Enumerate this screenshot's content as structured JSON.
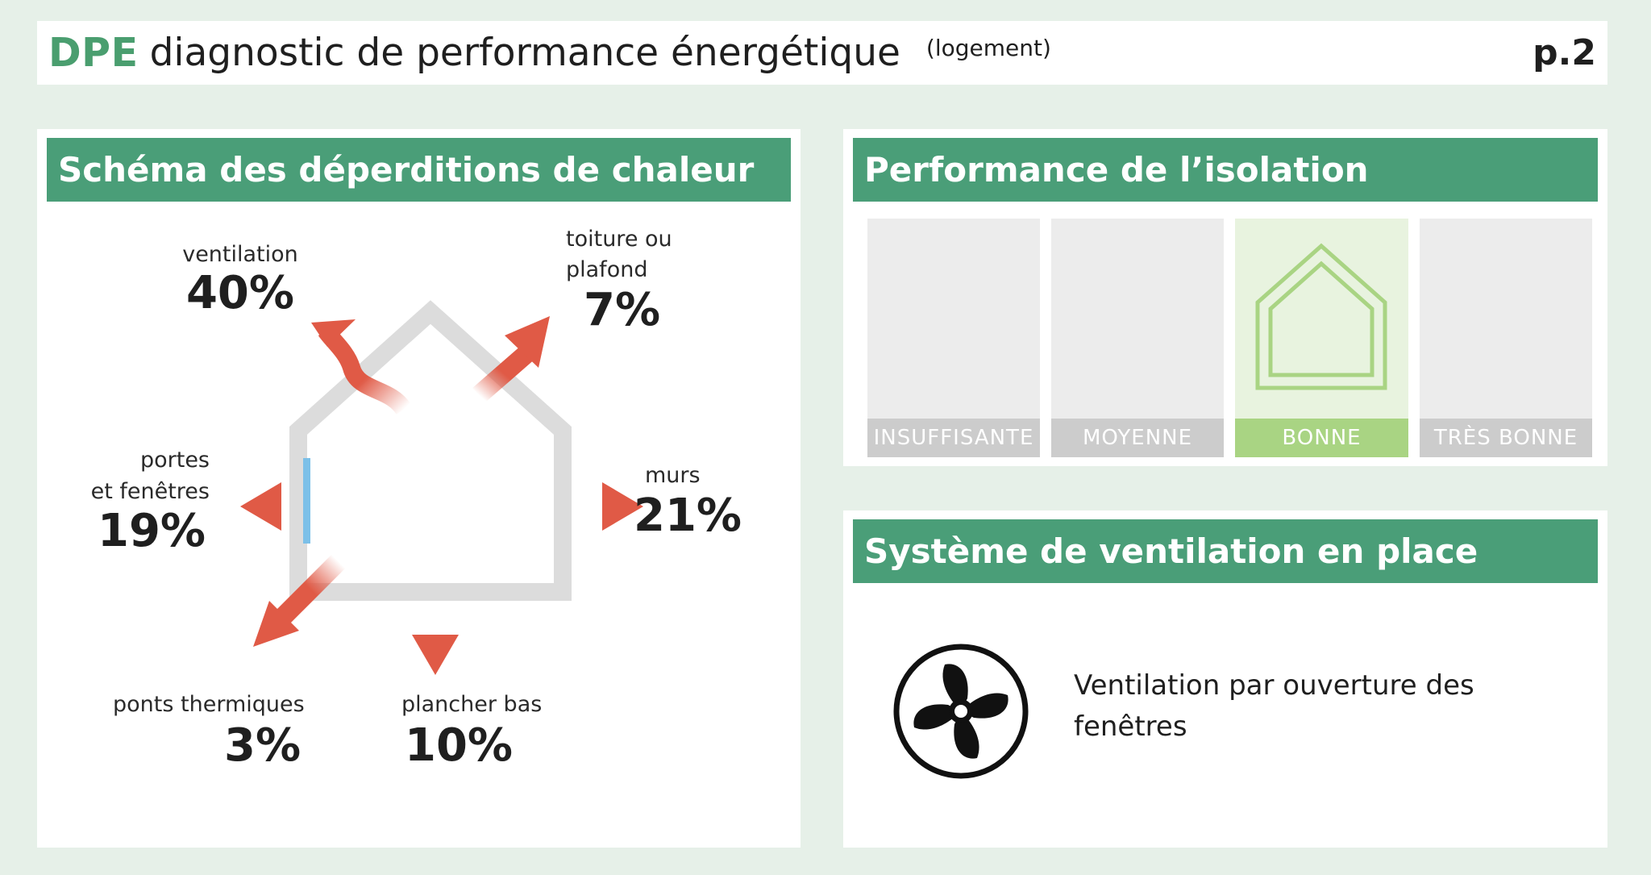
{
  "header": {
    "brand": "DPE",
    "title": "diagnostic de performance énergétique",
    "subtitle": "(logement)",
    "page": "p.2"
  },
  "heat_loss": {
    "title": "Schéma des déperditions de chaleur",
    "items": {
      "ventilation": {
        "label_lines": [
          "ventilation"
        ],
        "value": "40%"
      },
      "toiture": {
        "label_lines": [
          "toiture ou",
          "plafond"
        ],
        "value": "7%"
      },
      "portes": {
        "label_lines": [
          "portes",
          "et fenêtres"
        ],
        "value": "19%"
      },
      "murs": {
        "label_lines": [
          "murs"
        ],
        "value": "21%"
      },
      "ponts": {
        "label_lines": [
          "ponts thermiques"
        ],
        "value": "3%"
      },
      "plancher": {
        "label_lines": [
          "plancher bas"
        ],
        "value": "10%"
      }
    },
    "colors": {
      "arrow": "#e05a46",
      "house": "#dcdcdc",
      "window": "#7cc0e8"
    }
  },
  "insulation": {
    "title": "Performance de l’isolation",
    "levels": [
      "INSUFFISANTE",
      "MOYENNE",
      "BONNE",
      "TRÈS BONNE"
    ],
    "selected": "BONNE",
    "icon": "house-outline-icon"
  },
  "ventilation_system": {
    "title": "Système de ventilation en place",
    "description": "Ventilation par ouverture des fenêtres",
    "icon": "fan-icon"
  },
  "colors": {
    "brand_green": "#4a9e6f",
    "title_bar": "#4a9e78",
    "selected_level": "#a9d483",
    "page_background": "#e6f0e8"
  }
}
